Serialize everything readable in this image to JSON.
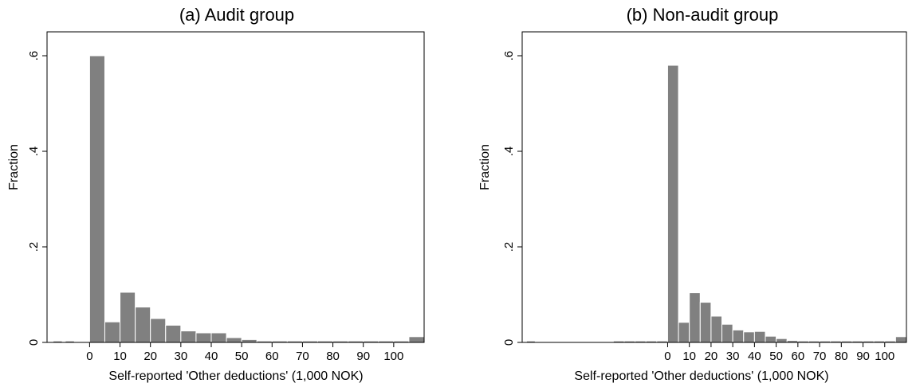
{
  "chart_data": [
    {
      "type": "bar",
      "title": "(a) Audit group",
      "xlabel": "Self-reported 'Other deductions' (1,000 NOK)",
      "ylabel": "Fraction",
      "ylim": [
        0,
        0.65
      ],
      "xlim": [
        -14,
        110
      ],
      "grid": false,
      "bin_width": 5,
      "x_ticks": [
        0,
        10,
        20,
        30,
        40,
        50,
        60,
        70,
        80,
        90,
        100
      ],
      "x_tick_labels": [
        "0",
        "10",
        "20",
        "30",
        "40",
        "50",
        "60",
        "70",
        "80",
        "90",
        "100"
      ],
      "y_ticks": [
        0,
        0.2,
        0.4,
        0.6
      ],
      "y_tick_labels": [
        "0",
        ".2",
        ".4",
        ".6"
      ],
      "bins": [
        {
          "x0": -12,
          "x1": -9,
          "value": 0.003
        },
        {
          "x0": -8,
          "x1": -5,
          "value": 0.003
        },
        {
          "x0": 0,
          "x1": 5,
          "value": 0.6
        },
        {
          "x0": 5,
          "x1": 10,
          "value": 0.043
        },
        {
          "x0": 10,
          "x1": 15,
          "value": 0.105
        },
        {
          "x0": 15,
          "x1": 20,
          "value": 0.074
        },
        {
          "x0": 20,
          "x1": 25,
          "value": 0.05
        },
        {
          "x0": 25,
          "x1": 30,
          "value": 0.036
        },
        {
          "x0": 30,
          "x1": 35,
          "value": 0.024
        },
        {
          "x0": 35,
          "x1": 40,
          "value": 0.02
        },
        {
          "x0": 40,
          "x1": 45,
          "value": 0.02
        },
        {
          "x0": 45,
          "x1": 50,
          "value": 0.01
        },
        {
          "x0": 50,
          "x1": 55,
          "value": 0.006
        },
        {
          "x0": 55,
          "x1": 60,
          "value": 0.003
        },
        {
          "x0": 60,
          "x1": 65,
          "value": 0.003
        },
        {
          "x0": 65,
          "x1": 70,
          "value": 0.003
        },
        {
          "x0": 70,
          "x1": 75,
          "value": 0.003
        },
        {
          "x0": 75,
          "x1": 80,
          "value": 0.003
        },
        {
          "x0": 80,
          "x1": 85,
          "value": 0.003
        },
        {
          "x0": 85,
          "x1": 90,
          "value": 0.003
        },
        {
          "x0": 90,
          "x1": 95,
          "value": 0.003
        },
        {
          "x0": 95,
          "x1": 100,
          "value": 0.003
        },
        {
          "x0": 100,
          "x1": 105,
          "value": 0.003
        },
        {
          "x0": 105,
          "x1": 110,
          "value": 0.012
        }
      ]
    },
    {
      "type": "bar",
      "title": "(b) Non-audit group",
      "xlabel": "Self-reported 'Other deductions' (1,000 NOK)",
      "ylabel": "Fraction",
      "ylim": [
        0,
        0.65
      ],
      "xlim": [
        -67,
        110
      ],
      "grid": false,
      "bin_width": 5,
      "x_ticks": [
        0,
        10,
        20,
        30,
        40,
        50,
        60,
        70,
        80,
        90,
        100
      ],
      "x_tick_labels": [
        "0",
        "10",
        "20",
        "30",
        "40",
        "50",
        "60",
        "70",
        "80",
        "90",
        "100"
      ],
      "y_ticks": [
        0,
        0.2,
        0.4,
        0.6
      ],
      "y_tick_labels": [
        "0",
        ".2",
        ".4",
        ".6"
      ],
      "bins": [
        {
          "x0": -65,
          "x1": -61,
          "value": 0.003
        },
        {
          "x0": -25,
          "x1": -20,
          "value": 0.003
        },
        {
          "x0": -20,
          "x1": -15,
          "value": 0.003
        },
        {
          "x0": -15,
          "x1": -10,
          "value": 0.003
        },
        {
          "x0": -10,
          "x1": -5,
          "value": 0.003
        },
        {
          "x0": -5,
          "x1": 0,
          "value": 0.003
        },
        {
          "x0": 0,
          "x1": 5,
          "value": 0.58
        },
        {
          "x0": 5,
          "x1": 10,
          "value": 0.042
        },
        {
          "x0": 10,
          "x1": 15,
          "value": 0.104
        },
        {
          "x0": 15,
          "x1": 20,
          "value": 0.084
        },
        {
          "x0": 20,
          "x1": 25,
          "value": 0.055
        },
        {
          "x0": 25,
          "x1": 30,
          "value": 0.038
        },
        {
          "x0": 30,
          "x1": 35,
          "value": 0.026
        },
        {
          "x0": 35,
          "x1": 40,
          "value": 0.022
        },
        {
          "x0": 40,
          "x1": 45,
          "value": 0.023
        },
        {
          "x0": 45,
          "x1": 50,
          "value": 0.013
        },
        {
          "x0": 50,
          "x1": 55,
          "value": 0.008
        },
        {
          "x0": 55,
          "x1": 60,
          "value": 0.004
        },
        {
          "x0": 60,
          "x1": 65,
          "value": 0.003
        },
        {
          "x0": 65,
          "x1": 70,
          "value": 0.003
        },
        {
          "x0": 70,
          "x1": 75,
          "value": 0.003
        },
        {
          "x0": 75,
          "x1": 80,
          "value": 0.003
        },
        {
          "x0": 80,
          "x1": 85,
          "value": 0.003
        },
        {
          "x0": 85,
          "x1": 90,
          "value": 0.003
        },
        {
          "x0": 90,
          "x1": 95,
          "value": 0.003
        },
        {
          "x0": 95,
          "x1": 100,
          "value": 0.003
        },
        {
          "x0": 100,
          "x1": 105,
          "value": 0.003
        },
        {
          "x0": 105,
          "x1": 110,
          "value": 0.012
        }
      ]
    }
  ],
  "colors": {
    "bar_fill": "#808080",
    "background": "#ffffff",
    "axis": "#000000"
  }
}
